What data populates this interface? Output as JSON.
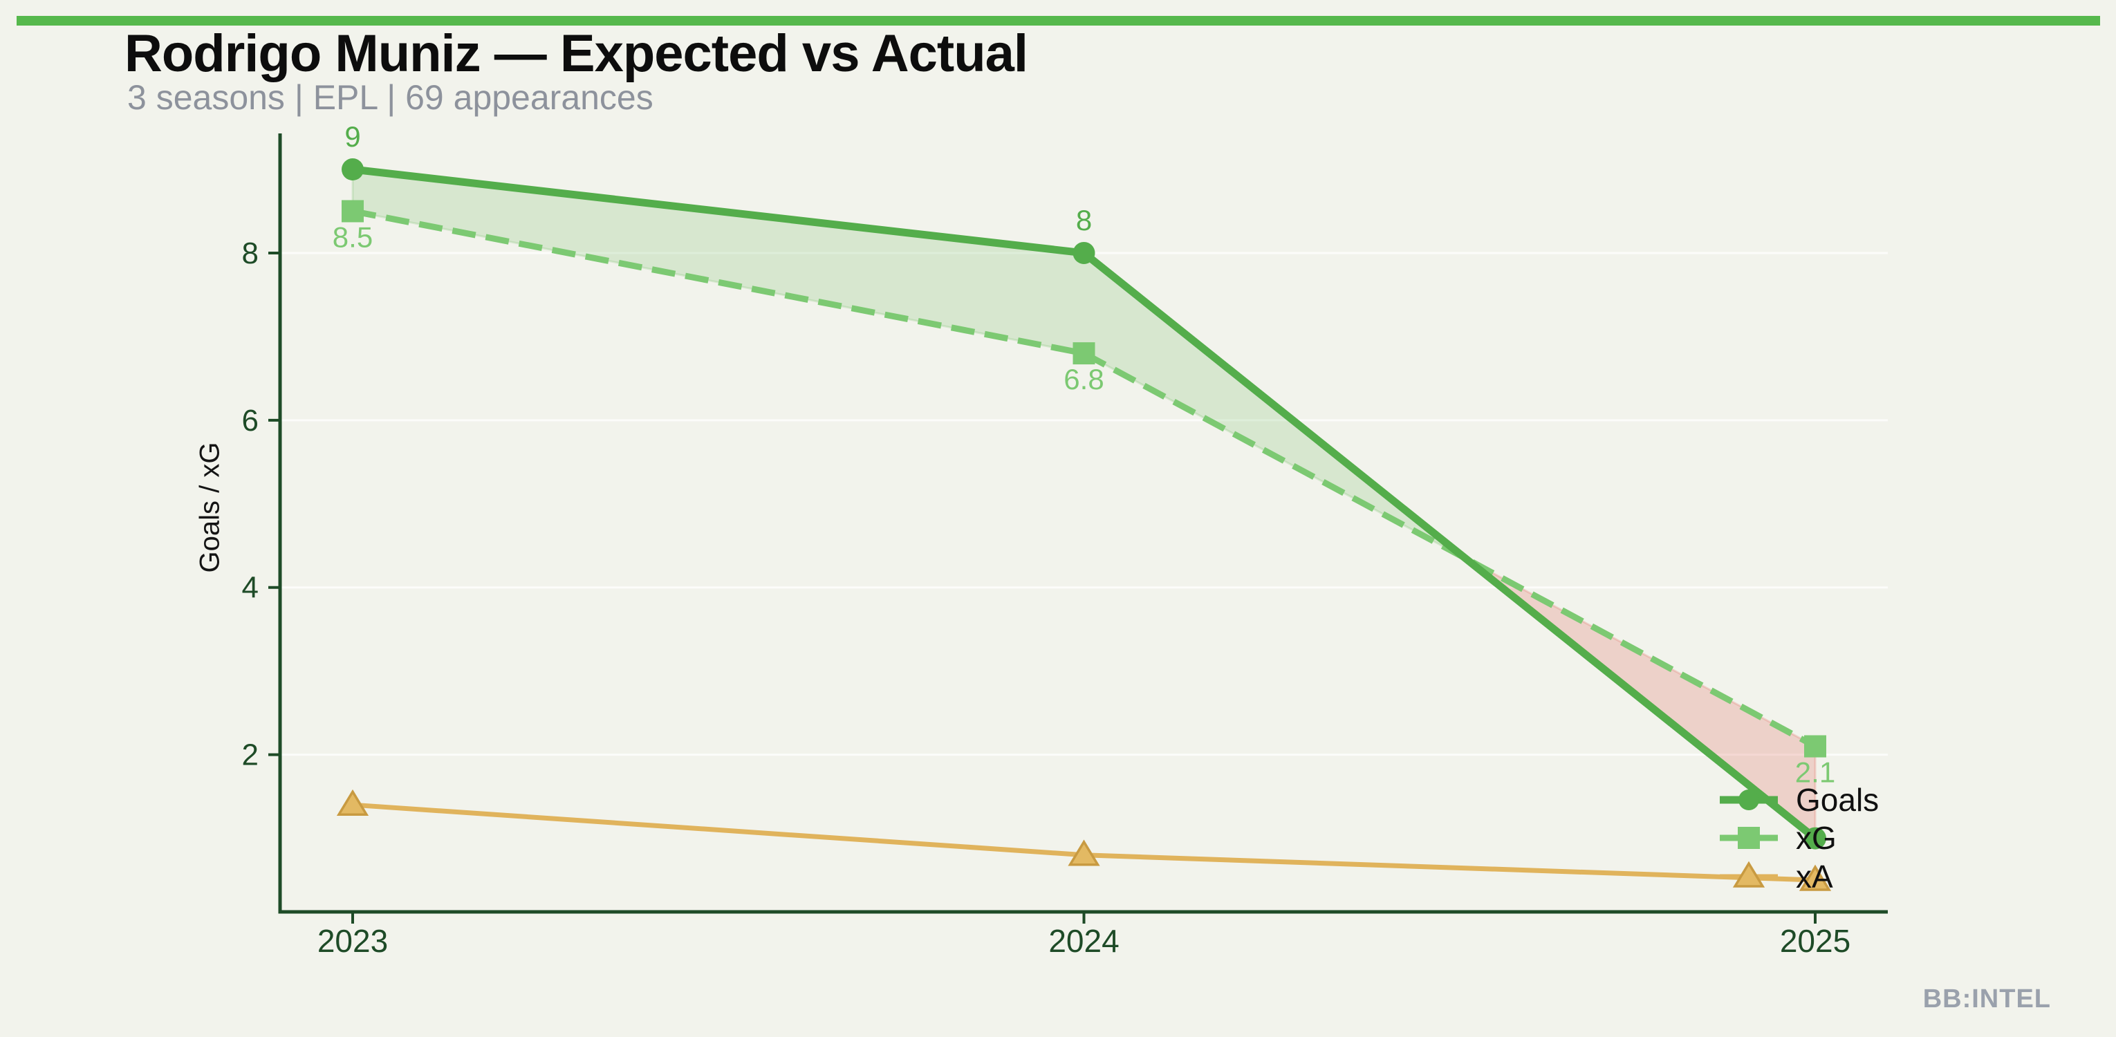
{
  "colors": {
    "accent_bar": "#56b84c",
    "background": "#f2f3ec",
    "axis": "#1e4b27",
    "grid": "rgba(255,255,255,0.75)",
    "title": "#0d0d0d",
    "subtitle": "#8d929c",
    "watermark": "#9aa1ac",
    "goals": "#54ad4b",
    "xg": "#7cc972",
    "xa": "#e0b35c"
  },
  "footer": {
    "watermark": "BB:INTEL"
  },
  "chart_data": {
    "type": "line",
    "title": "Rodrigo Muniz — Expected vs Actual",
    "subtitle": "3 seasons | EPL | 69 appearances",
    "ylabel": "Goals / xG",
    "categories": [
      "2023",
      "2024",
      "2025"
    ],
    "series": [
      {
        "name": "Goals",
        "values": [
          9,
          8,
          1
        ],
        "color": "#54ad4b",
        "marker": "circle",
        "line_style": "solid",
        "point_labels": [
          "9",
          "8",
          ""
        ],
        "label_side": "above"
      },
      {
        "name": "xG",
        "values": [
          8.5,
          6.8,
          2.1
        ],
        "color": "#7cc972",
        "marker": "square",
        "line_style": "dashed",
        "point_labels": [
          "8.5",
          "6.8",
          "2.1"
        ],
        "label_side": "below"
      },
      {
        "name": "xA",
        "values": [
          1.4,
          0.8,
          0.5
        ],
        "color": "#e0b35c",
        "marker": "triangle",
        "line_style": "solid",
        "point_labels": [
          "",
          "",
          ""
        ],
        "label_side": "below"
      }
    ],
    "yticks": [
      2,
      4,
      6,
      8
    ],
    "ylim": [
      0.12,
      9.43
    ],
    "grid": "horizontal",
    "legend": {
      "position": "inside-bottom-right",
      "entries": [
        "Goals",
        "xG",
        "xA"
      ]
    },
    "fills": [
      {
        "between": [
          "Goals",
          "xG"
        ],
        "region": "Goals above xG",
        "color": "rgba(120,190,105,0.22)"
      },
      {
        "between": [
          "Goals",
          "xG"
        ],
        "region": "xG above Goals",
        "color": "rgba(226,122,112,0.28)"
      }
    ]
  }
}
